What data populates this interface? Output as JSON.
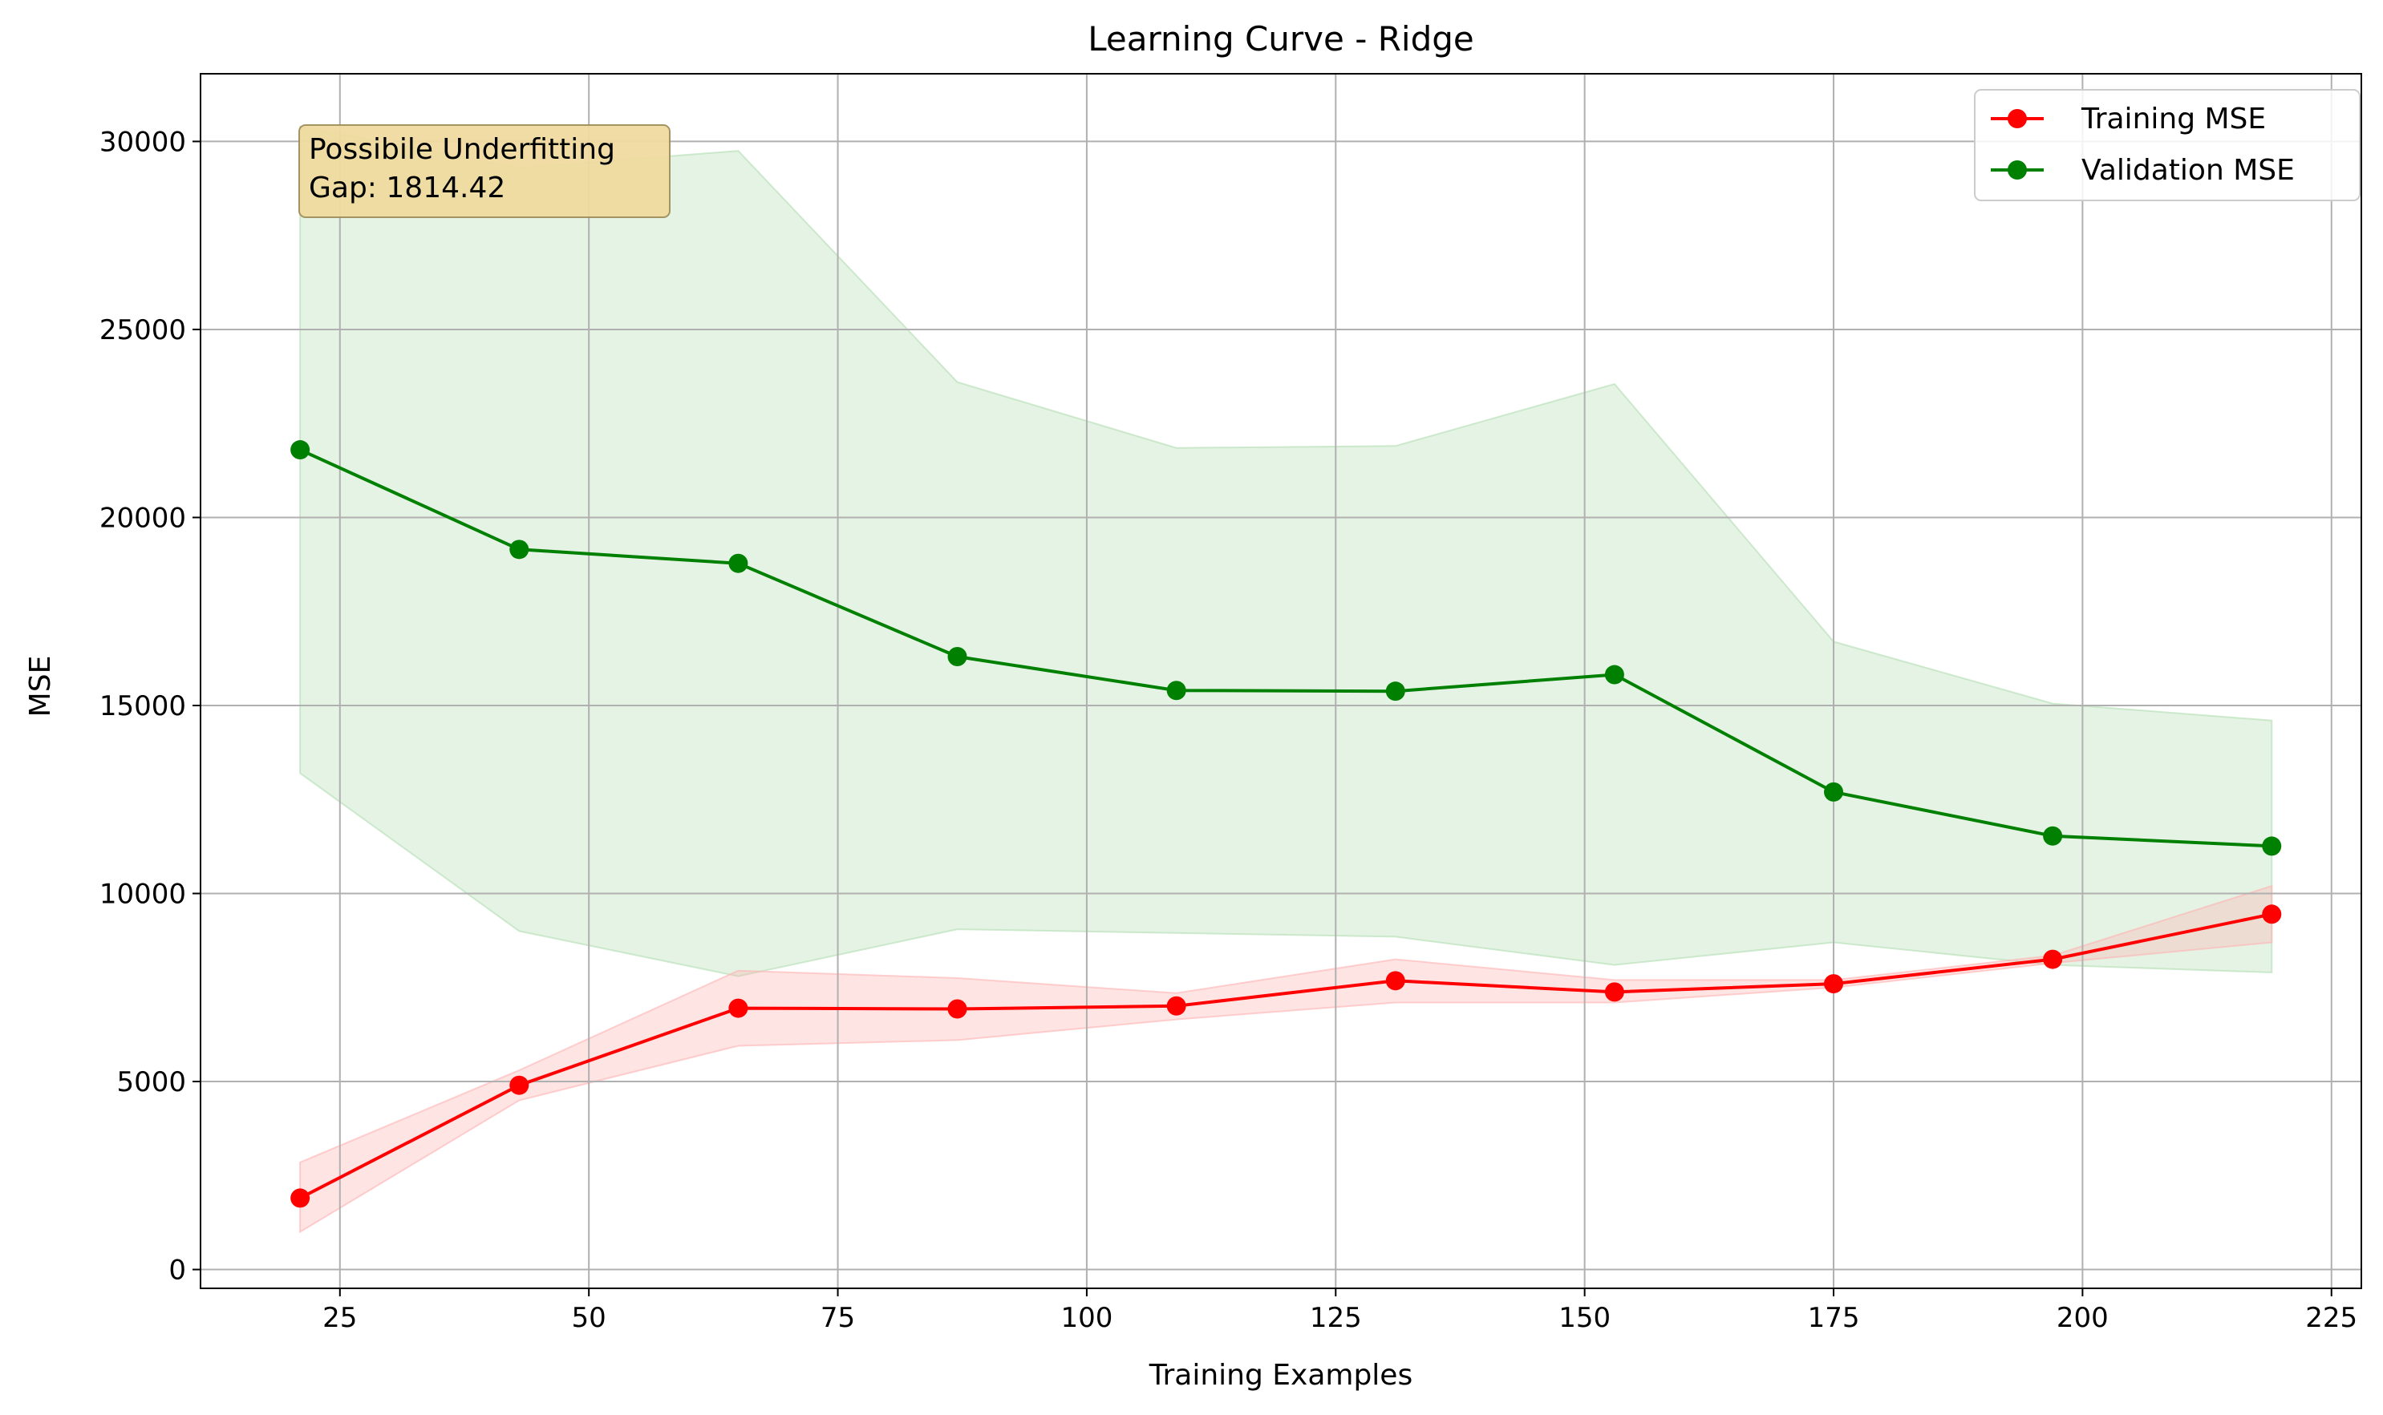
{
  "chart_data": {
    "type": "line",
    "title": "Learning Curve - Ridge",
    "xlabel": "Training Examples",
    "ylabel": "MSE",
    "xlim": [
      11,
      228
    ],
    "ylim": [
      -500,
      31800
    ],
    "xticks": [
      25,
      50,
      75,
      100,
      125,
      150,
      175,
      200,
      225
    ],
    "yticks": [
      0,
      5000,
      10000,
      15000,
      20000,
      25000,
      30000
    ],
    "grid": true,
    "legend_position": "top-right",
    "x": [
      21,
      43,
      65,
      87,
      109,
      131,
      153,
      175,
      197,
      219
    ],
    "series": [
      {
        "name": "Training MSE",
        "color": "#ff0000",
        "band_color": "#ffb3b3",
        "values": [
          1900,
          4900,
          6950,
          6930,
          7010,
          7680,
          7380,
          7600,
          8250,
          9450
        ],
        "band_low": [
          1000,
          4500,
          5950,
          6100,
          6650,
          7100,
          7100,
          7500,
          8150,
          8700
        ],
        "band_high": [
          2850,
          5300,
          7950,
          7750,
          7350,
          8250,
          7700,
          7700,
          8350,
          10200
        ]
      },
      {
        "name": "Validation MSE",
        "color": "#008000",
        "band_color": "#b3deb3",
        "values": [
          21800,
          19150,
          18780,
          16300,
          15400,
          15380,
          15820,
          12700,
          11530,
          11260
        ],
        "band_low": [
          13200,
          9000,
          7800,
          9050,
          8950,
          8850,
          8100,
          8700,
          8100,
          7900
        ],
        "band_high": [
          30400,
          29300,
          29750,
          23600,
          21850,
          21900,
          23550,
          16700,
          15050,
          14600
        ]
      }
    ],
    "annotation": {
      "lines": [
        "Possibile Underfitting",
        "Gap: 1814.42"
      ],
      "color": "#f0dba0"
    }
  }
}
